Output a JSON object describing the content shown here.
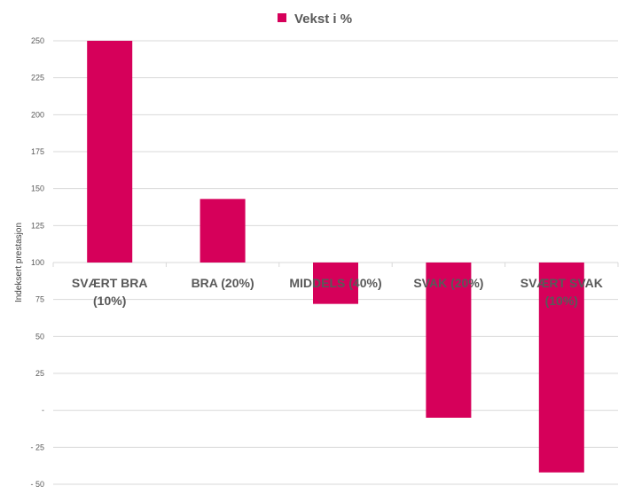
{
  "chart_data": {
    "type": "bar",
    "categories": [
      [
        "SVÆRT BRA",
        "(10%)"
      ],
      [
        "BRA (20%)"
      ],
      [
        "MIDDELS (40%)"
      ],
      [
        "SVAK (20%)"
      ],
      [
        "SVÆRT SVAK",
        "(10%)"
      ]
    ],
    "series": [
      {
        "name": "Vekst i %",
        "values": [
          250,
          143,
          72,
          -5,
          -42
        ],
        "color": "#d6005a"
      }
    ],
    "baseline": 100,
    "ylabel": "Indeksert prestasjon",
    "ylim": [
      -50,
      250
    ],
    "yticks": [
      250,
      225,
      200,
      175,
      150,
      125,
      100,
      75,
      50,
      25,
      0,
      -25,
      -50
    ],
    "ytick_labels": [
      "250",
      "225",
      "200",
      "175",
      "150",
      "125",
      "100",
      "75",
      "50",
      "25",
      "-",
      "- 25",
      "- 50"
    ],
    "grid": true,
    "legend_position": "top-center"
  }
}
